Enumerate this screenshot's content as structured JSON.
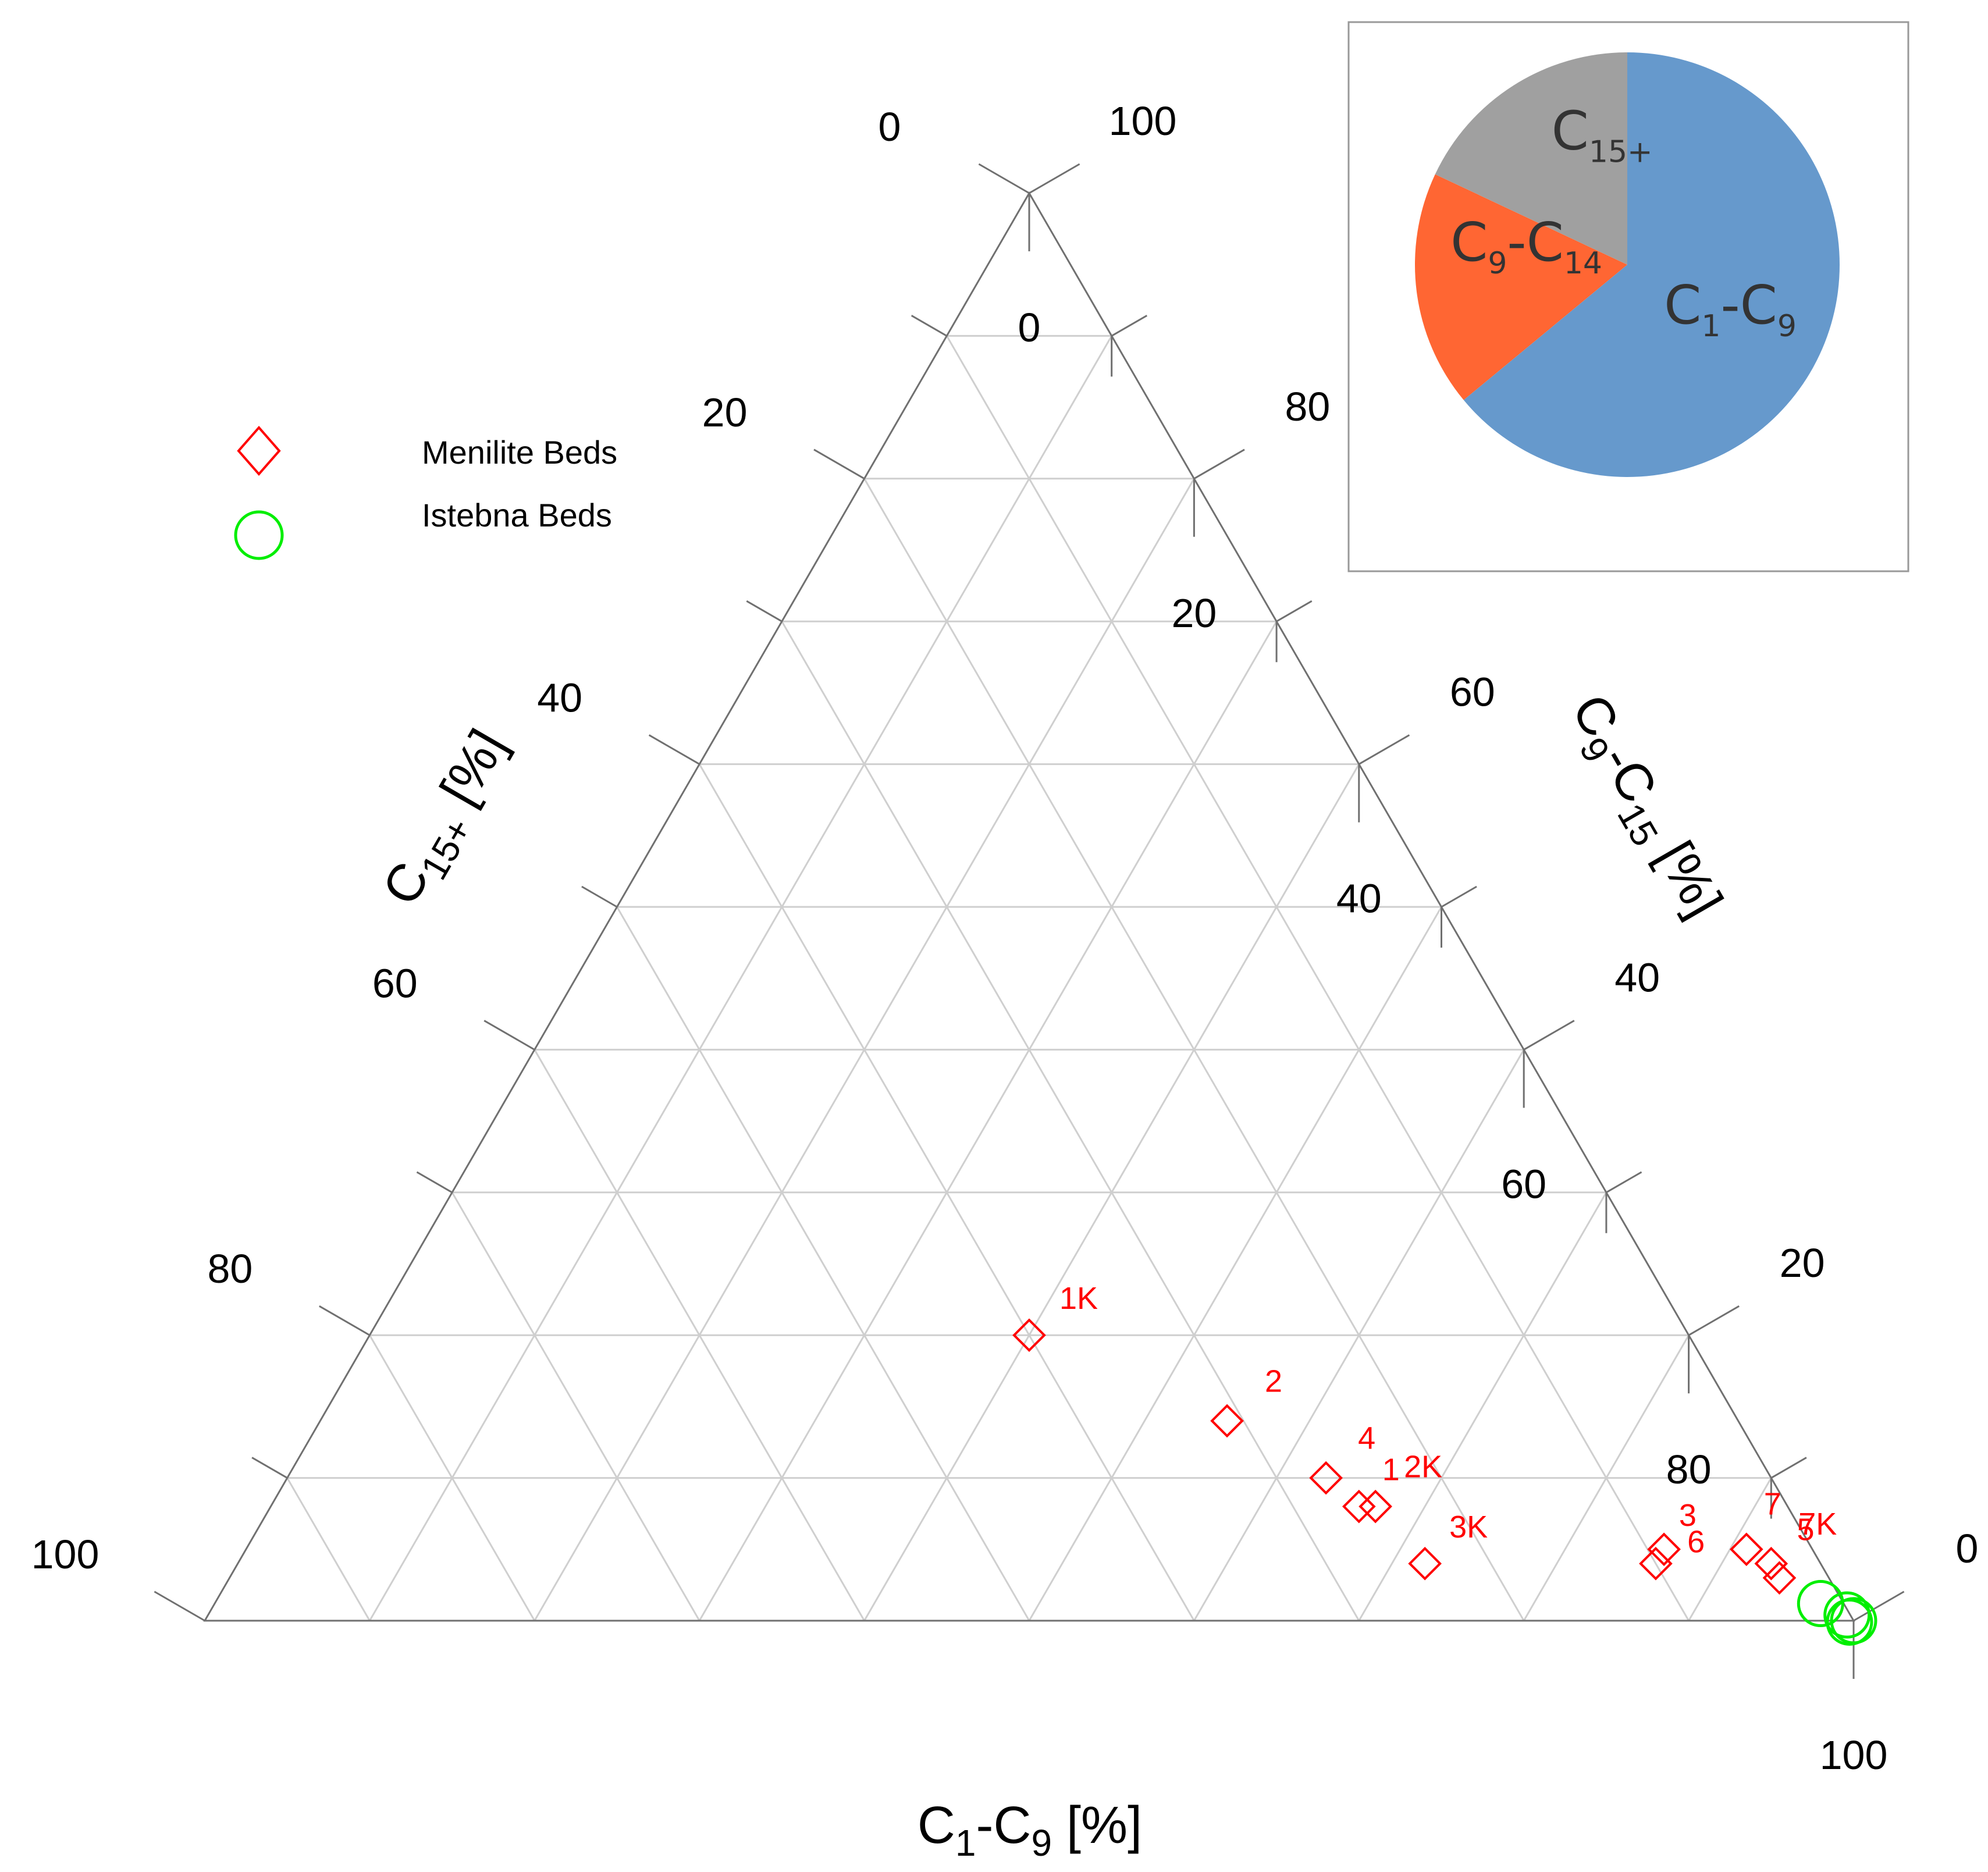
{
  "chart_data": [
    {
      "type": "ternary",
      "axes": {
        "bottom": {
          "label_main": "C",
          "label_sub": "1",
          "label_mid": "-C",
          "label_sub2": "9",
          "label_tail": " [%]",
          "ticks": [
            "0",
            "20",
            "40",
            "60",
            "80",
            "100"
          ]
        },
        "left": {
          "label_main": "C",
          "label_sub": "15+",
          "label_tail": " [%]",
          "ticks": [
            "100",
            "80",
            "60",
            "40",
            "20",
            "0"
          ]
        },
        "right": {
          "label_main": "C",
          "label_sub": "9",
          "label_mid": "-C",
          "label_sub2": "15",
          "label_tail": " [%]",
          "ticks": [
            "0",
            "20",
            "40",
            "60",
            "80",
            "100"
          ]
        }
      },
      "grid": true,
      "grid_step": 10,
      "legend": {
        "position": "top-left",
        "entries": [
          {
            "name": "Menilite Beds",
            "marker": "diamond",
            "color": "#ff0000"
          },
          {
            "name": "Istebna Beds",
            "marker": "circle",
            "color": "#00ee00"
          }
        ]
      },
      "series": [
        {
          "name": "Menilite Beds",
          "marker": "diamond",
          "color": "#ff0000",
          "points": [
            {
              "label": "1K",
              "c1_c9": 40,
              "c15plus": 40
            },
            {
              "label": "2",
              "c1_c9": 55,
              "c15plus": 31
            },
            {
              "label": "4",
              "c1_c9": 63,
              "c15plus": 27
            },
            {
              "label": "1",
              "c1_c9": 66,
              "c15plus": 26
            },
            {
              "label": "2K",
              "c1_c9": 67,
              "c15plus": 25
            },
            {
              "label": "3K",
              "c1_c9": 72,
              "c15plus": 24
            },
            {
              "label": "3",
              "c1_c9": 86,
              "c15plus": 10
            },
            {
              "label": "6",
              "c1_c9": 86,
              "c15plus": 9
            },
            {
              "label": "7",
              "c1_c9": 91,
              "c15plus": 4
            },
            {
              "label": "7K",
              "c1_c9": 93,
              "c15plus": 3
            },
            {
              "label": "5",
              "c1_c9": 94,
              "c15plus": 3
            }
          ]
        },
        {
          "name": "Istebna Beds",
          "marker": "circle",
          "color": "#00ee00",
          "points": [
            {
              "c1_c9": 97.4,
              "c15plus": 1.4
            },
            {
              "c1_c9": 99.4,
              "c15plus": 0.2
            },
            {
              "c1_c9": 99.8,
              "c15plus": 0.3
            },
            {
              "c1_c9": 100,
              "c15plus": 0
            }
          ]
        }
      ]
    },
    {
      "type": "pie",
      "position": "top-right inset",
      "slices": [
        {
          "label_main": "C",
          "label_sub": "1",
          "label_mid": "-C",
          "label_sub2": "9",
          "value": 64,
          "color": "#6699cc"
        },
        {
          "label_main": "C",
          "label_sub": "9",
          "label_mid": "-C",
          "label_sub2": "14",
          "value": 18,
          "color": "#ff6633"
        },
        {
          "label_main": "C",
          "label_sub": "15+",
          "label_mid": "",
          "label_sub2": "",
          "value": 18,
          "color": "#a0a0a0"
        }
      ]
    }
  ]
}
